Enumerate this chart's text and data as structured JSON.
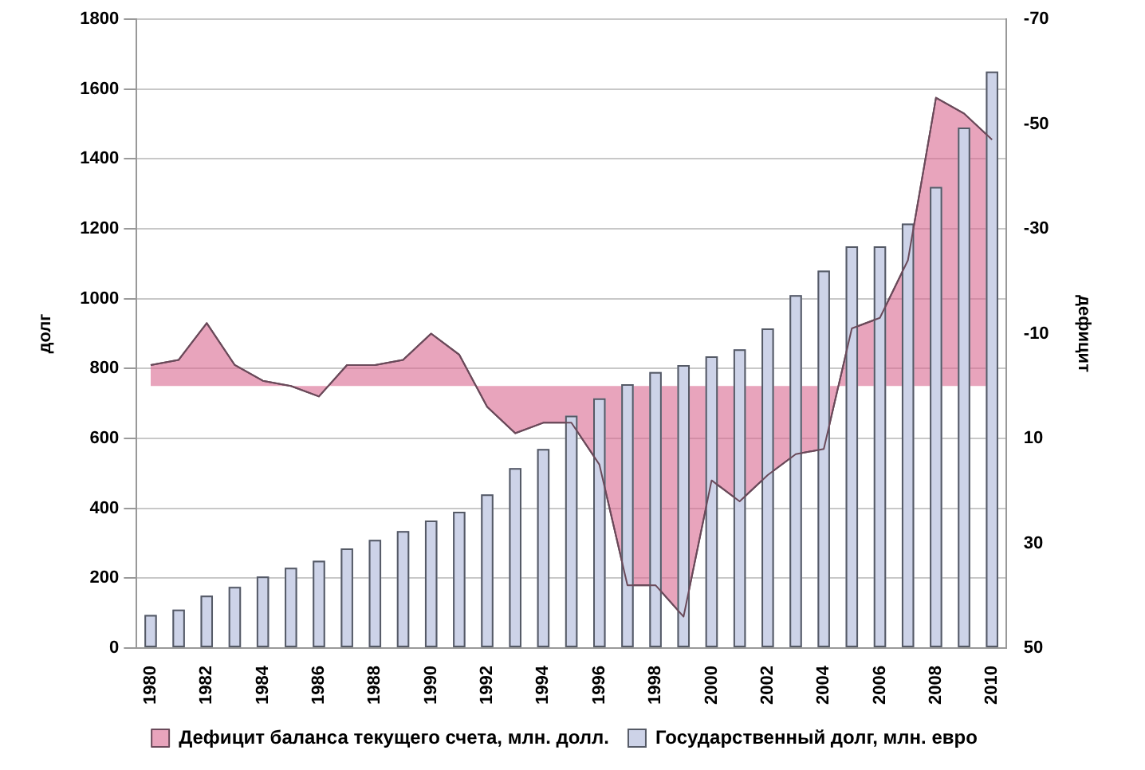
{
  "chart_data": {
    "type": "bar",
    "ylabel": "долг",
    "y2label": "дефицит",
    "categories": [
      "1980",
      null,
      "1982",
      null,
      "1984",
      null,
      "1986",
      null,
      "1988",
      null,
      "1990",
      null,
      "1992",
      null,
      "1994",
      null,
      "1996",
      null,
      "1998",
      null,
      "2000",
      null,
      "2002",
      null,
      "2004",
      null,
      "2006",
      null,
      "2008",
      null,
      "2010"
    ],
    "series": [
      {
        "name": "Дефицит баланса текущего счета, млн. долл.",
        "type": "area",
        "axis": "y2",
        "color": "#e8a4bc",
        "values": [
          -4,
          -5,
          -12,
          -4,
          -1,
          0,
          2,
          -4,
          -4,
          -5,
          -10,
          -6,
          4,
          9,
          7,
          7,
          15,
          38,
          38,
          44,
          18,
          22,
          17,
          13,
          12,
          -11,
          -13,
          -24,
          -55,
          -52,
          -47
        ]
      },
      {
        "name": "Государственный долг, млн. евро",
        "color": "#cdd3e8",
        "values": [
          95,
          110,
          150,
          175,
          205,
          230,
          250,
          285,
          310,
          335,
          365,
          390,
          440,
          515,
          570,
          665,
          715,
          755,
          790,
          810,
          835,
          855,
          915,
          1010,
          1080,
          1150,
          1150,
          1215,
          1320,
          1490,
          1650
        ]
      }
    ],
    "ylim": [
      0,
      1800
    ],
    "yticks": [
      0,
      200,
      400,
      600,
      800,
      1000,
      1200,
      1400,
      1600,
      1800
    ],
    "y2lim": [
      50,
      -70
    ],
    "y2ticks": [
      50,
      30,
      10,
      -10,
      -30,
      -50,
      -70
    ],
    "grid": "y",
    "legend": "bottom"
  }
}
